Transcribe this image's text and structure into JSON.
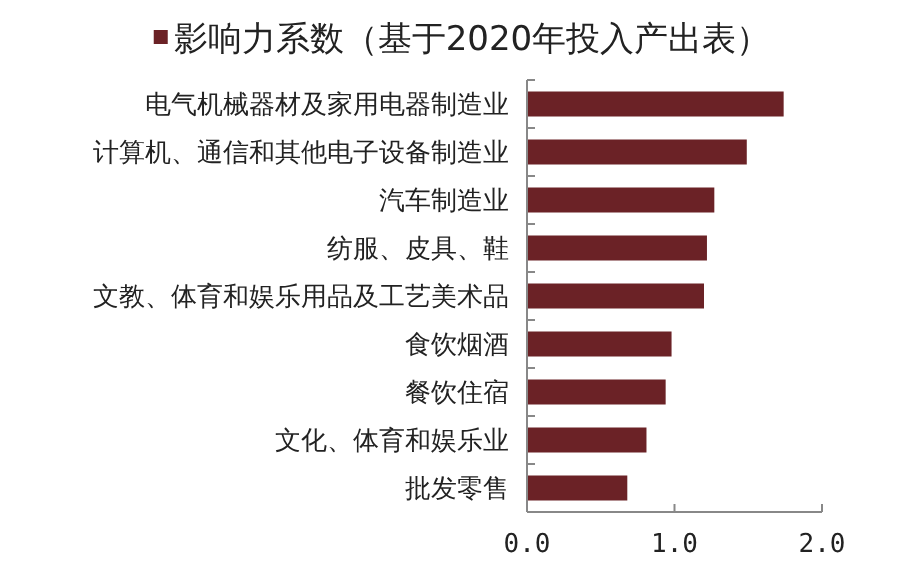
{
  "chart_data": {
    "type": "bar",
    "orientation": "horizontal",
    "legend": "top",
    "categories": [
      "电气机械器材及家用电器制造业",
      "计算机、通信和其他电子设备制造业",
      "汽车制造业",
      "纺服、皮具、鞋",
      "文教、体育和娱乐用品及工艺美术品",
      "食饮烟酒",
      "餐饮住宿",
      "文化、体育和娱乐业",
      "批发零售"
    ],
    "series": [
      {
        "name": "影响力系数（基于2020年投入产出表）",
        "color": "#6b2226",
        "values": [
          1.74,
          1.49,
          1.27,
          1.22,
          1.2,
          0.98,
          0.94,
          0.81,
          0.68
        ]
      }
    ],
    "xlim": [
      0,
      2
    ],
    "xticks": [
      {
        "value": 0,
        "label": "0.0"
      },
      {
        "value": 1,
        "label": "1.0"
      },
      {
        "value": 2,
        "label": "2.0"
      }
    ]
  }
}
